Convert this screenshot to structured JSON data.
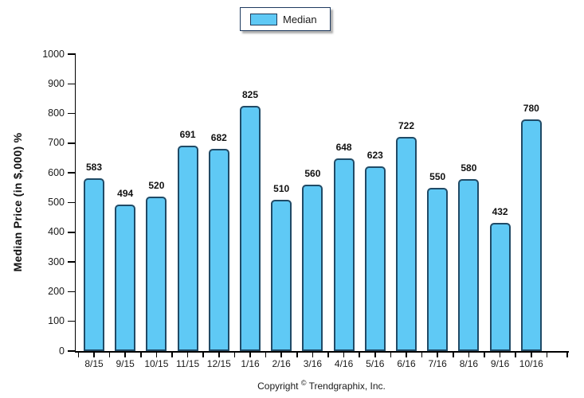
{
  "chart_data": {
    "type": "bar",
    "title": "",
    "categories": [
      "8/15",
      "9/15",
      "10/15",
      "11/15",
      "12/15",
      "1/16",
      "2/16",
      "3/16",
      "4/16",
      "5/16",
      "6/16",
      "7/16",
      "8/16",
      "9/16",
      "10/16"
    ],
    "series": [
      {
        "name": "Median",
        "values": [
          583,
          494,
          520,
          691,
          682,
          825,
          510,
          560,
          648,
          623,
          722,
          550,
          580,
          432,
          780
        ]
      }
    ],
    "xlabel": "",
    "ylabel": "Median Price (in $,000) %",
    "ylim": [
      0,
      1000
    ],
    "ytick_step": 100,
    "yticks": [
      0,
      100,
      200,
      300,
      400,
      500,
      600,
      700,
      800,
      900,
      1000
    ],
    "grid": false,
    "legend_position": "top-center",
    "value_labels": true,
    "bar_fill_color": "#5fc9f5",
    "bar_border_color": "#204a66"
  },
  "legend": {
    "label": "Median"
  },
  "footer": {
    "copyright_prefix": "Copyright ",
    "copyright_symbol": "©",
    "copyright_suffix": " Trendgraphix, Inc."
  }
}
